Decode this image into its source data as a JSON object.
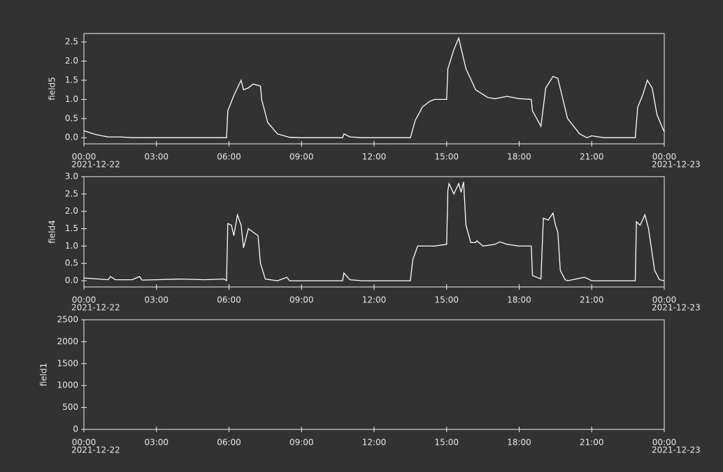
{
  "chart_data": [
    {
      "type": "line",
      "ylabel": "field5",
      "x": [
        0,
        0.5,
        1,
        1.5,
        2,
        3,
        4,
        5,
        5.9,
        5.95,
        6.2,
        6.5,
        6.6,
        6.8,
        7.0,
        7.3,
        7.35,
        7.6,
        8,
        8.5,
        9,
        10.7,
        10.75,
        11,
        11.5,
        13.5,
        13.7,
        14,
        14.3,
        14.5,
        15,
        15.05,
        15.3,
        15.5,
        15.8,
        16.2,
        16.7,
        17,
        17.5,
        18,
        18.5,
        18.55,
        18.9,
        19.1,
        19.4,
        19.6,
        20,
        20.5,
        20.8,
        21,
        21.5,
        22.8,
        22.9,
        23.1,
        23.3,
        23.5,
        23.7,
        24
      ],
      "series": [
        {
          "color": "#ffffff",
          "values": [
            0.18,
            0.08,
            0.02,
            0.02,
            0,
            0,
            0,
            0,
            0,
            0.7,
            1.1,
            1.5,
            1.25,
            1.3,
            1.4,
            1.35,
            1.0,
            0.4,
            0.1,
            0.01,
            0,
            0,
            0.1,
            0.02,
            0,
            0,
            0.45,
            0.8,
            0.95,
            1.0,
            1.0,
            1.8,
            2.3,
            2.6,
            1.8,
            1.25,
            1.05,
            1.02,
            1.08,
            1.02,
            1.0,
            0.7,
            0.3,
            1.3,
            1.6,
            1.55,
            0.5,
            0.1,
            0,
            0.05,
            0,
            0,
            0.8,
            1.1,
            1.5,
            1.3,
            0.6,
            0.15
          ]
        }
      ],
      "xlim": [
        0,
        24
      ],
      "ylim": [
        -0.16,
        2.72
      ],
      "xticks": [
        {
          "value": 0,
          "label": "00:00"
        },
        {
          "value": 3,
          "label": "03:00"
        },
        {
          "value": 6,
          "label": "06:00"
        },
        {
          "value": 9,
          "label": "09:00"
        },
        {
          "value": 12,
          "label": "12:00"
        },
        {
          "value": 15,
          "label": "15:00"
        },
        {
          "value": 18,
          "label": "18:00"
        },
        {
          "value": 21,
          "label": "21:00"
        },
        {
          "value": 24,
          "label": "00:00"
        }
      ],
      "yticks": [
        {
          "value": 0,
          "label": "0.0"
        },
        0.5,
        {
          "value": 1,
          "label": "1.0"
        },
        1.5,
        {
          "value": 2,
          "label": "2.0"
        },
        2.5
      ],
      "start_date": "2021-12-22",
      "end_date": "2021-12-23"
    },
    {
      "type": "line",
      "ylabel": "field4",
      "x": [
        0,
        1,
        1.1,
        1.3,
        2,
        2.3,
        2.4,
        3,
        4,
        5,
        5.8,
        5.9,
        5.95,
        6.1,
        6.2,
        6.35,
        6.5,
        6.6,
        6.8,
        7.0,
        7.2,
        7.3,
        7.5,
        8,
        8.4,
        8.5,
        10.7,
        10.75,
        11,
        11.5,
        13.5,
        13.6,
        13.8,
        14.5,
        15,
        15.05,
        15.1,
        15.3,
        15.5,
        15.6,
        15.7,
        15.8,
        16,
        16.2,
        16.25,
        16.5,
        17,
        17.2,
        17.5,
        18,
        18.5,
        18.55,
        18.9,
        19.0,
        19.2,
        19.4,
        19.5,
        19.6,
        19.7,
        19.9,
        20,
        20.7,
        21,
        22.8,
        22.85,
        23.0,
        23.2,
        23.35,
        23.6,
        23.8,
        24
      ],
      "series": [
        {
          "color": "#ffffff",
          "values": [
            0.08,
            0.03,
            0.12,
            0.03,
            0.03,
            0.12,
            0.02,
            0.03,
            0.05,
            0.03,
            0.05,
            0,
            1.65,
            1.6,
            1.3,
            1.9,
            1.6,
            0.95,
            1.5,
            1.4,
            1.3,
            0.5,
            0.05,
            0,
            0.1,
            0,
            0,
            0.22,
            0.03,
            0,
            0,
            0.6,
            1.0,
            1.0,
            1.05,
            2.6,
            2.8,
            2.5,
            2.8,
            2.55,
            2.85,
            1.6,
            1.1,
            1.1,
            1.15,
            1.0,
            1.05,
            1.12,
            1.05,
            1.0,
            1.0,
            0.15,
            0.05,
            1.8,
            1.75,
            1.95,
            1.6,
            1.4,
            0.3,
            0.03,
            0,
            0.1,
            0,
            0,
            1.7,
            1.6,
            1.9,
            1.5,
            0.3,
            0.03,
            0
          ]
        }
      ],
      "xlim": [
        0,
        24
      ],
      "ylim": [
        -0.18,
        3.0
      ],
      "xticks": [
        {
          "value": 0,
          "label": "00:00"
        },
        {
          "value": 3,
          "label": "03:00"
        },
        {
          "value": 6,
          "label": "06:00"
        },
        {
          "value": 9,
          "label": "09:00"
        },
        {
          "value": 12,
          "label": "12:00"
        },
        {
          "value": 15,
          "label": "15:00"
        },
        {
          "value": 18,
          "label": "18:00"
        },
        {
          "value": 21,
          "label": "21:00"
        },
        {
          "value": 24,
          "label": "00:00"
        }
      ],
      "yticks": [
        {
          "value": 0,
          "label": "0.0"
        },
        0.5,
        {
          "value": 1,
          "label": "1.0"
        },
        1.5,
        {
          "value": 2,
          "label": "2.0"
        },
        2.5,
        {
          "value": 3,
          "label": "3.0"
        }
      ],
      "start_date": "2021-12-22",
      "end_date": "2021-12-23"
    },
    {
      "type": "line",
      "ylabel": "field1",
      "x": [],
      "series": [],
      "xlim": [
        0,
        24
      ],
      "ylim": [
        0,
        2500
      ],
      "xticks": [
        {
          "value": 0,
          "label": "00:00"
        },
        {
          "value": 3,
          "label": "03:00"
        },
        {
          "value": 6,
          "label": "06:00"
        },
        {
          "value": 9,
          "label": "09:00"
        },
        {
          "value": 12,
          "label": "12:00"
        },
        {
          "value": 15,
          "label": "15:00"
        },
        {
          "value": 18,
          "label": "18:00"
        },
        {
          "value": 21,
          "label": "21:00"
        },
        {
          "value": 24,
          "label": "00:00"
        }
      ],
      "yticks": [
        0,
        500,
        1000,
        1500,
        2000,
        2500
      ],
      "start_date": "2021-12-22",
      "end_date": "2021-12-23"
    }
  ]
}
